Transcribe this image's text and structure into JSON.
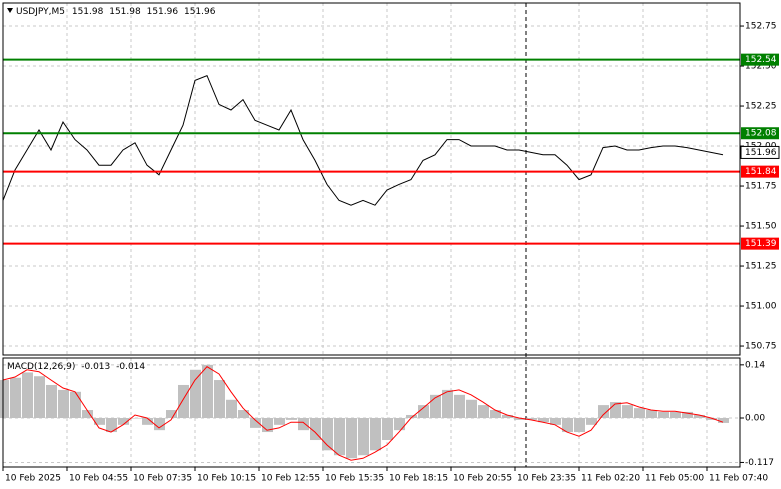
{
  "chart_data": [
    {
      "type": "line",
      "title": "USDJPY,M5",
      "ohlc": [
        151.98,
        151.98,
        151.96,
        151.96
      ],
      "color": "#000000",
      "grid": true,
      "x": [
        0,
        30,
        60,
        90,
        120,
        150,
        180,
        210,
        240,
        270,
        300,
        330,
        360,
        390,
        420,
        450,
        480,
        510,
        540,
        570,
        600,
        630,
        660,
        690,
        720,
        750,
        780,
        810,
        840,
        870,
        900,
        930,
        960,
        990,
        1020,
        1050,
        1080,
        1110,
        1140,
        1170,
        1200,
        1230,
        1260,
        1290,
        1320,
        1350,
        1380,
        1410,
        1440,
        1470,
        1500,
        1530,
        1560,
        1590,
        1620,
        1650,
        1680,
        1710,
        1740,
        1770,
        1800
      ],
      "values": [
        151.66,
        151.85,
        151.975,
        152.1,
        151.975,
        152.15,
        152.04,
        151.975,
        151.88,
        151.88,
        151.975,
        152.02,
        151.88,
        151.82,
        151.975,
        152.13,
        152.41,
        152.44,
        152.26,
        152.225,
        152.29,
        152.16,
        152.13,
        152.1,
        152.225,
        152.04,
        151.91,
        151.76,
        151.66,
        151.63,
        151.66,
        151.63,
        151.725,
        151.76,
        151.79,
        151.91,
        151.945,
        152.04,
        152.04,
        152,
        152,
        152,
        151.975,
        151.975,
        151.96,
        151.945,
        151.945,
        151.88,
        151.79,
        151.82,
        151.99,
        152,
        151.975,
        151.975,
        151.99,
        152,
        152,
        151.99,
        151.975,
        151.96,
        151.945
      ],
      "xlim": [
        0,
        1842.5
      ],
      "xticks": [
        {
          "value": 0,
          "label": "10 Feb 2025"
        },
        {
          "value": 160,
          "label": "10 Feb 04:55"
        },
        {
          "value": 320,
          "label": "10 Feb 07:35"
        },
        {
          "value": 480,
          "label": "10 Feb 10:15"
        },
        {
          "value": 640,
          "label": "10 Feb 12:55"
        },
        {
          "value": 800,
          "label": "10 Feb 15:35"
        },
        {
          "value": 960,
          "label": "10 Feb 18:15"
        },
        {
          "value": 1120,
          "label": "10 Feb 20:55"
        },
        {
          "value": 1280,
          "label": "10 Feb 23:35"
        },
        {
          "value": 1440,
          "label": "11 Feb 02:20"
        },
        {
          "value": 1600,
          "label": "11 Feb 05:00"
        },
        {
          "value": 1760,
          "label": "11 Feb 07:40"
        }
      ],
      "ylim": [
        150.694,
        152.894
      ],
      "yticks": [
        152.75,
        {
          "value": 152.5,
          "label": "152.50"
        },
        152.25,
        {
          "value": 152,
          "label": "152.00"
        },
        151.75,
        {
          "value": 151.5,
          "label": "151.50"
        },
        151.25,
        {
          "value": 151,
          "label": "151.00"
        },
        150.75
      ],
      "levels": [
        {
          "value": 152.54,
          "color": "#008000"
        },
        {
          "value": 152.08,
          "color": "#008000"
        },
        {
          "value": 151.84,
          "color": "#ff0000"
        },
        {
          "value": 151.39,
          "color": "#ff0000"
        }
      ],
      "last": 151.96
    },
    {
      "type": "macd",
      "title": "MACD(12,26,9)",
      "readout": [
        -0.013,
        -0.014
      ],
      "color": "#c0c0c0",
      "signal_color": "#ff0000",
      "grid": true,
      "values": [
        0.1,
        0.106,
        0.12,
        0.11,
        0.087,
        0.074,
        0.069,
        0.021,
        -0.018,
        -0.037,
        -0.018,
        0,
        -0.018,
        -0.032,
        0.021,
        0.087,
        0.127,
        0.14,
        0.1,
        0.048,
        0.021,
        -0.026,
        -0.037,
        -0.018,
        -0.005,
        -0.032,
        -0.058,
        -0.085,
        -0.098,
        -0.106,
        -0.098,
        -0.085,
        -0.058,
        -0.032,
        0.008,
        0.034,
        0.061,
        0.074,
        0.061,
        0.048,
        0.034,
        0.021,
        0.008,
        -0.005,
        -0.005,
        -0.011,
        -0.018,
        -0.037,
        -0.037,
        -0.018,
        0.034,
        0.042,
        0.034,
        0.026,
        0.021,
        0.016,
        0.016,
        0.016,
        0.008,
        -0.005,
        -0.013
      ],
      "signal_values": [
        0.1,
        0.108,
        0.127,
        0.122,
        0.1,
        0.079,
        0.069,
        0.021,
        -0.026,
        -0.037,
        -0.018,
        0.008,
        0,
        -0.026,
        -0.005,
        0.048,
        0.1,
        0.135,
        0.116,
        0.069,
        0.026,
        -0.005,
        -0.032,
        -0.026,
        -0.011,
        -0.011,
        -0.037,
        -0.071,
        -0.098,
        -0.111,
        -0.106,
        -0.09,
        -0.071,
        -0.037,
        0,
        0.026,
        0.053,
        0.069,
        0.074,
        0.061,
        0.042,
        0.021,
        0.008,
        0,
        -0.005,
        -0.011,
        -0.018,
        -0.037,
        -0.048,
        -0.032,
        0.008,
        0.037,
        0.04,
        0.029,
        0.021,
        0.018,
        0.018,
        0.013,
        0.008,
        0,
        -0.011
      ],
      "ylim": [
        -0.129,
        0.158
      ],
      "yticks": [
        0.14,
        {
          "value": 0,
          "label": "0.00"
        },
        -0.117
      ]
    }
  ]
}
